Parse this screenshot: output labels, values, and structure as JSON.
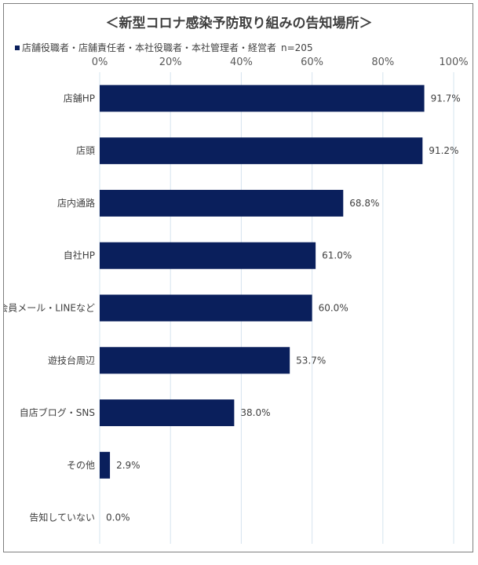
{
  "chart_data": {
    "type": "bar",
    "orientation": "horizontal",
    "title": "＜新型コロナ感染予防取り組みの告知場所＞",
    "legend_text": "店舗役職者・店舗責任者・本社役職者・本社管理者・経営者",
    "n_label": "n=205",
    "categories": [
      "店舗HP",
      "店頭",
      "店内通路",
      "自社HP",
      "会員メール・LINEなど",
      "遊技台周辺",
      "自店ブログ・SNS",
      "その他",
      "告知していない"
    ],
    "values": [
      91.7,
      91.2,
      68.8,
      61.0,
      60.0,
      53.7,
      38.0,
      2.9,
      0.0
    ],
    "value_labels": [
      "91.7%",
      "91.2%",
      "68.8%",
      "61.0%",
      "60.0%",
      "53.7%",
      "38.0%",
      "2.9%",
      "0.0%"
    ],
    "x_ticks": [
      "0%",
      "20%",
      "40%",
      "60%",
      "80%",
      "100%"
    ],
    "xlim": [
      0,
      100
    ],
    "grid": true,
    "legend_position": "top-left",
    "bar_color": "#0a1f5c",
    "grid_color": "#d6e4ef"
  }
}
